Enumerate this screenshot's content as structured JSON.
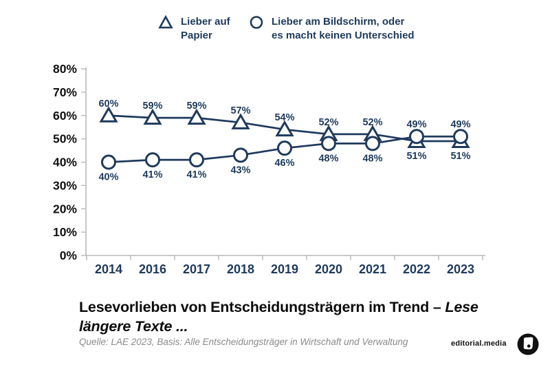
{
  "colors": {
    "series": "#1e3a5c",
    "axis_line": "#b9b9b9",
    "tick_label": "#111111",
    "year_label": "#1e3a5c",
    "data_label": "#1e3a5c",
    "title": "#0c0c0c",
    "source": "#8a8a8a",
    "brand": "#111111"
  },
  "legend": {
    "items": [
      {
        "marker": "triangle",
        "line1": "Lieber auf",
        "line2": "Papier"
      },
      {
        "marker": "circle",
        "line1": "Lieber am Bildschirm, oder",
        "line2": "es macht keinen Unterschied"
      }
    ]
  },
  "chart_data": {
    "type": "line",
    "categories": [
      "2014",
      "2016",
      "2017",
      "2018",
      "2019",
      "2020",
      "2021",
      "2022",
      "2023"
    ],
    "series": [
      {
        "name": "Lieber auf Papier",
        "marker": "triangle",
        "values": [
          60,
          59,
          59,
          57,
          54,
          52,
          52,
          49,
          49
        ],
        "label_position": "above"
      },
      {
        "name": "Lieber am Bildschirm, oder es macht keinen Unterschied",
        "marker": "circle",
        "values": [
          40,
          41,
          41,
          43,
          46,
          48,
          48,
          51,
          51
        ],
        "label_position": "below"
      }
    ],
    "ylim": [
      0,
      80
    ],
    "ytick_step": 10,
    "ytick_suffix": "%",
    "data_label_suffix": "%",
    "grid": false,
    "legend_position": "top"
  },
  "footer": {
    "title_regular": "Lesevorlieben von Entscheidungsträgern im Trend – ",
    "title_italic_line1": "Lese",
    "title_italic_line2": "längere Texte ...",
    "source": "Quelle: LAE 2023, Basis: Alle Entscheidungsträger in Wirtschaft und Verwaltung",
    "brand": "editorial.media"
  }
}
